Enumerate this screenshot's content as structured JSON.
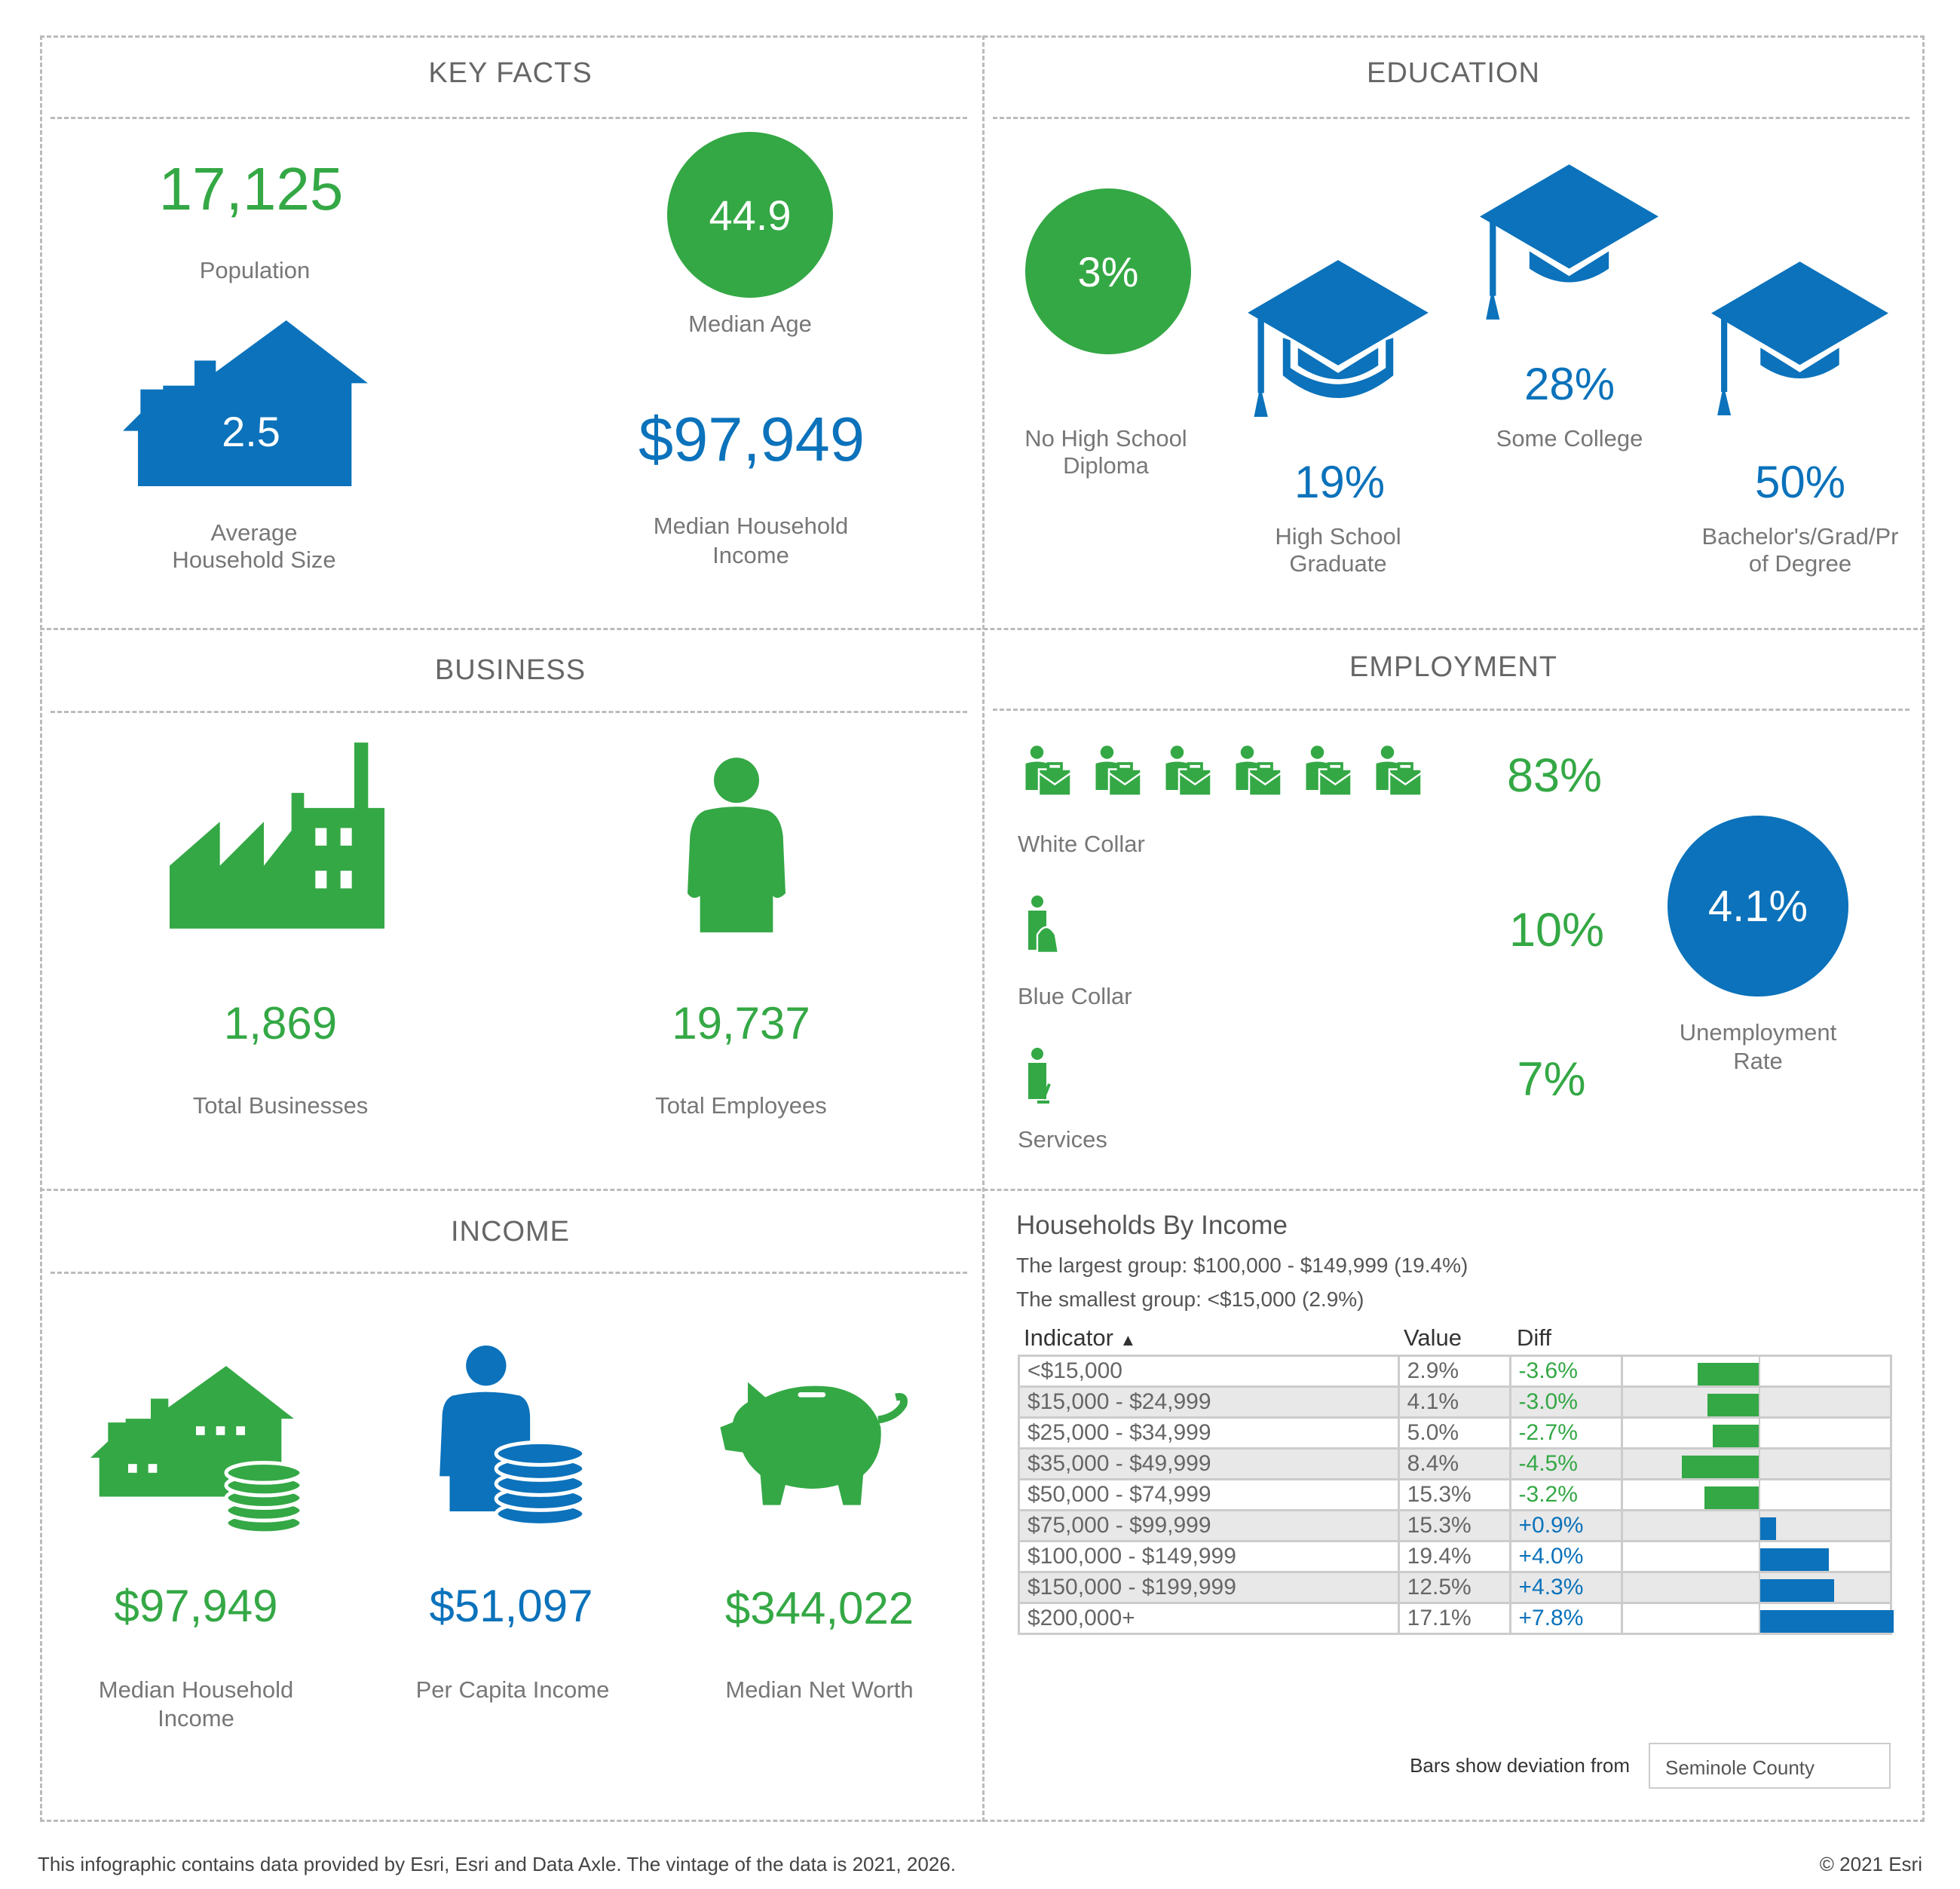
{
  "colors": {
    "green": "#34a845",
    "blue": "#0b72bb",
    "gray_text": "#666666",
    "border": "#bbbbbb"
  },
  "key_facts": {
    "title": "KEY FACTS",
    "population": {
      "value": "17,125",
      "label": "Population"
    },
    "median_age": {
      "value": "44.9",
      "label": "Median Age"
    },
    "household_size": {
      "value": "2.5",
      "label_line1": "Average",
      "label_line2": "Household Size",
      "icon": "house-icon"
    },
    "median_income": {
      "value": "$97,949",
      "label_line1": "Median Household",
      "label_line2": "Income"
    }
  },
  "education": {
    "title": "EDUCATION",
    "items": [
      {
        "value": "3%",
        "label_line1": "No High School",
        "label_line2": "Diploma"
      },
      {
        "value": "19%",
        "label_line1": "High School",
        "label_line2": "Graduate",
        "icon": "graduation-cap-icon"
      },
      {
        "value": "28%",
        "label_line1": "Some College",
        "icon": "graduation-cap-icon"
      },
      {
        "value": "50%",
        "label_line1": "Bachelor's/Grad/Pr",
        "label_line2": "of Degree",
        "icon": "graduation-cap-icon"
      }
    ]
  },
  "business": {
    "title": "BUSINESS",
    "total_businesses": {
      "value": "1,869",
      "label": "Total Businesses",
      "icon": "factory-icon"
    },
    "total_employees": {
      "value": "19,737",
      "label": "Total Employees",
      "icon": "person-icon"
    }
  },
  "employment": {
    "title": "EMPLOYMENT",
    "white_collar": {
      "value": "83%",
      "label": "White Collar",
      "icon": "white-collar-worker-icon"
    },
    "blue_collar": {
      "value": "10%",
      "label": "Blue Collar",
      "icon": "blue-collar-worker-icon"
    },
    "services": {
      "value": "7%",
      "label": "Services",
      "icon": "service-worker-icon"
    },
    "unemployment": {
      "value": "4.1%",
      "label_line1": "Unemployment",
      "label_line2": "Rate"
    }
  },
  "income": {
    "title": "INCOME",
    "median_household": {
      "value": "$97,949",
      "label_line1": "Median Household",
      "label_line2": "Income",
      "icon": "house-coins-icon"
    },
    "per_capita": {
      "value": "$51,097",
      "label": "Per Capita Income",
      "icon": "person-coins-icon"
    },
    "net_worth": {
      "value": "$344,022",
      "label": "Median Net Worth",
      "icon": "piggy-bank-icon"
    }
  },
  "households_by_income": {
    "title": "Households By Income",
    "largest": "The largest group: $100,000 - $149,999 (19.4%)",
    "smallest": "The smallest group: <$15,000 (2.9%)",
    "columns": {
      "indicator": "Indicator",
      "sort_icon": "▲",
      "value": "Value",
      "diff": "Diff"
    },
    "rows": [
      {
        "indicator": "<$15,000",
        "value": "2.9%",
        "diff": "-3.6%",
        "diff_num": -3.6
      },
      {
        "indicator": "$15,000 - $24,999",
        "value": "4.1%",
        "diff": "-3.0%",
        "diff_num": -3.0
      },
      {
        "indicator": "$25,000 - $34,999",
        "value": "5.0%",
        "diff": "-2.7%",
        "diff_num": -2.7
      },
      {
        "indicator": "$35,000 - $49,999",
        "value": "8.4%",
        "diff": "-4.5%",
        "diff_num": -4.5
      },
      {
        "indicator": "$50,000 - $74,999",
        "value": "15.3%",
        "diff": "-3.2%",
        "diff_num": -3.2
      },
      {
        "indicator": "$75,000 - $99,999",
        "value": "15.3%",
        "diff": "+0.9%",
        "diff_num": 0.9
      },
      {
        "indicator": "$100,000 - $149,999",
        "value": "19.4%",
        "diff": "+4.0%",
        "diff_num": 4.0
      },
      {
        "indicator": "$150,000 - $199,999",
        "value": "12.5%",
        "diff": "+4.3%",
        "diff_num": 4.3
      },
      {
        "indicator": "$200,000+",
        "value": "17.1%",
        "diff": "+7.8%",
        "diff_num": 7.8
      }
    ],
    "deviation_label": "Bars show deviation from",
    "comparison_area": "Seminole County"
  },
  "footer": {
    "source": "This infographic contains data provided by Esri, Esri and Data Axle. The vintage of the data is 2021, 2026.",
    "copyright": "© 2021 Esri"
  }
}
